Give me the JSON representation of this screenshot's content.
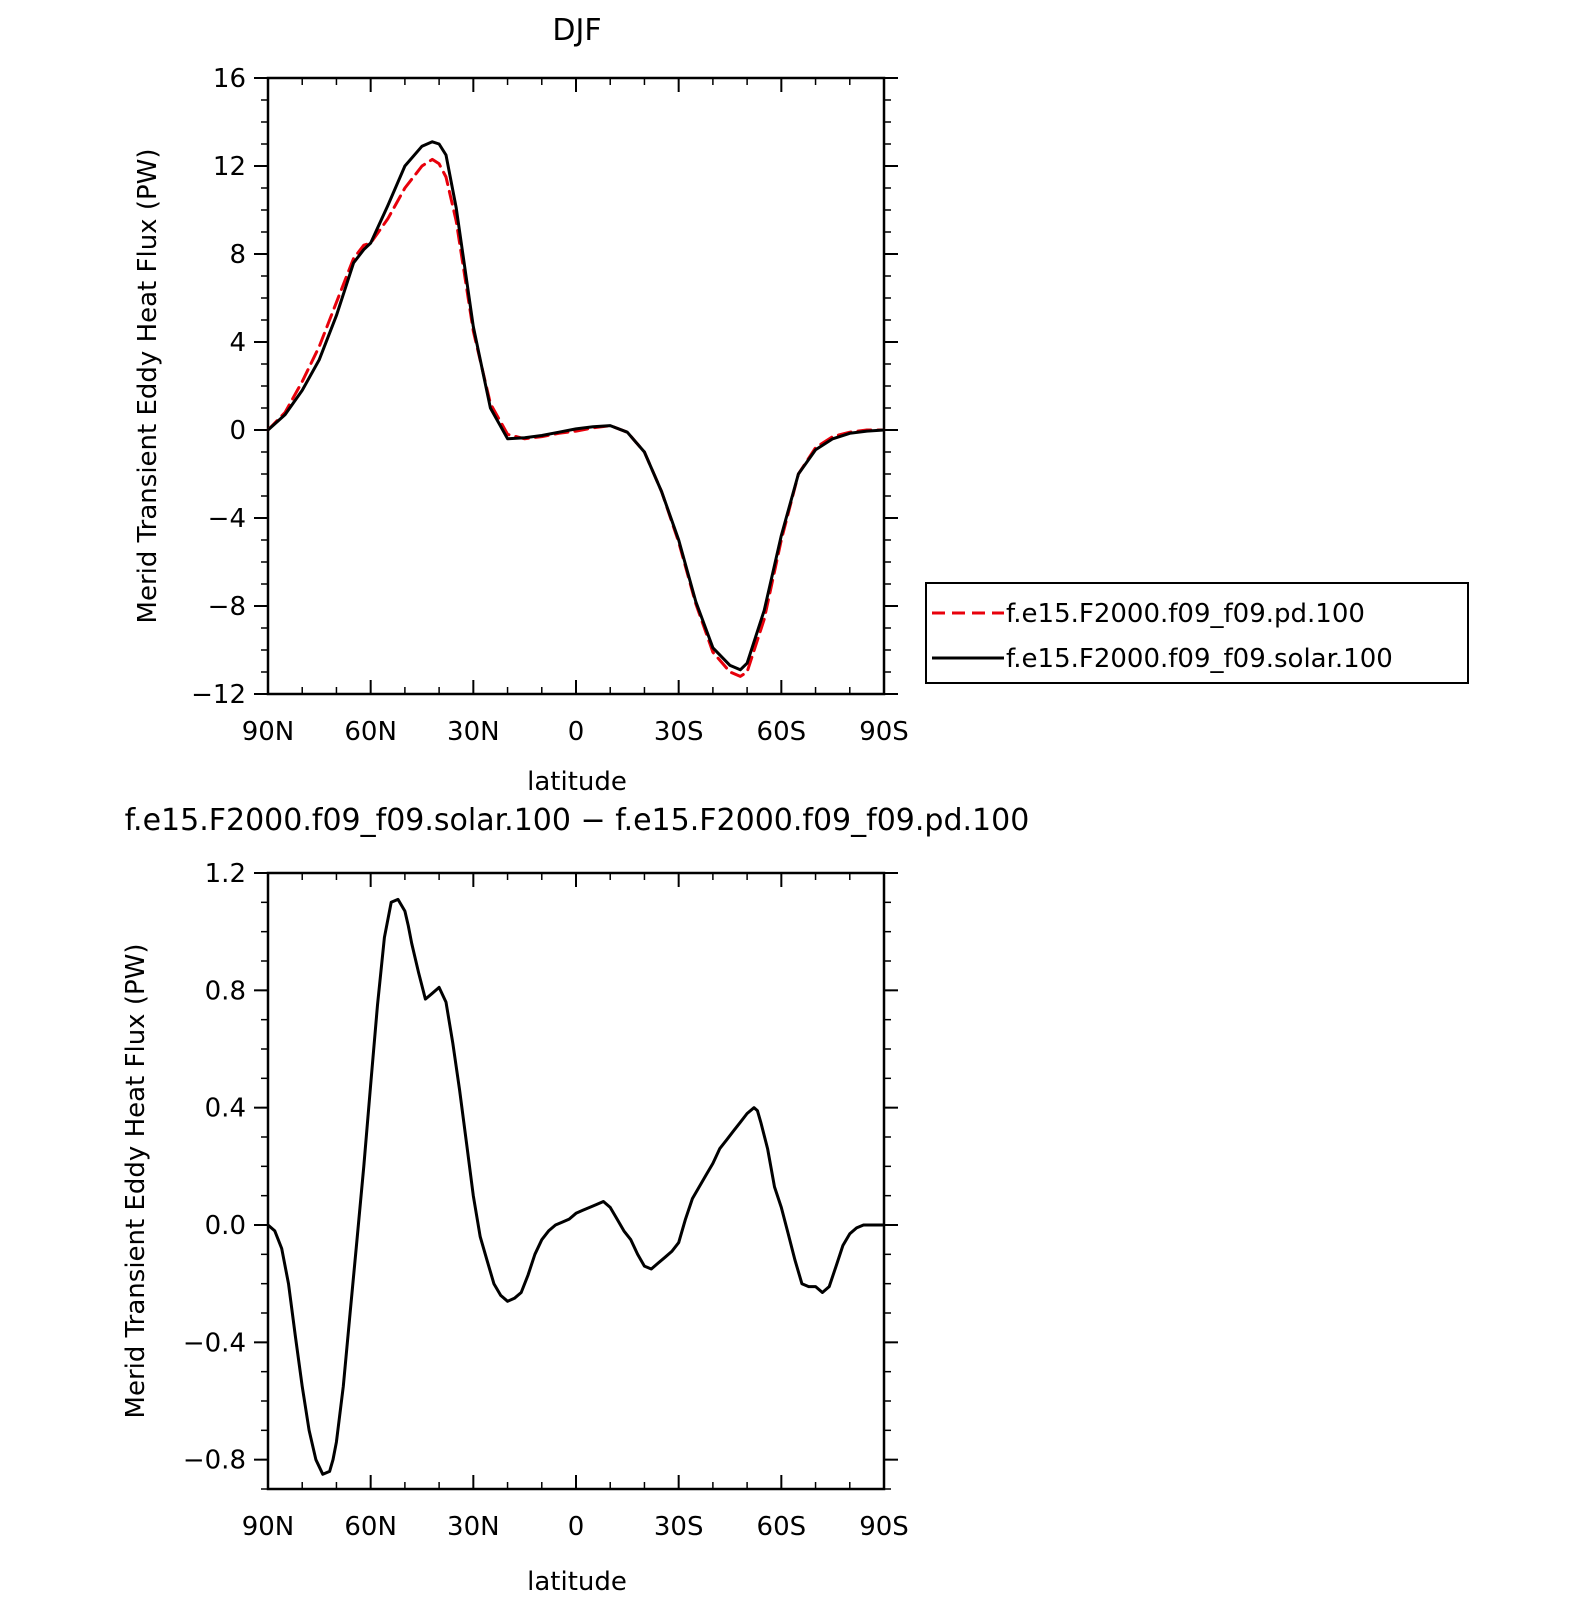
{
  "chart_data": [
    {
      "type": "line",
      "title": "DJF",
      "xlabel": "latitude",
      "ylabel": "Merid Transient Eddy Heat Flux (PW)",
      "x_tick_labels": [
        "90N",
        "60N",
        "30N",
        "0",
        "30S",
        "60S",
        "90S"
      ],
      "x_tick_values": [
        90,
        60,
        30,
        0,
        -30,
        -60,
        -90
      ],
      "xlim": [
        90,
        -90
      ],
      "ylim": [
        -12,
        16
      ],
      "y_tick_values": [
        -12,
        -8,
        -4,
        0,
        4,
        8,
        12,
        16
      ],
      "y_tick_labels": [
        "−12",
        "−8",
        "−4",
        "0",
        "4",
        "8",
        "12",
        "16"
      ],
      "grid": false,
      "legend_position": "right",
      "series": [
        {
          "name": "f.e15.F2000.f09_f09.pd.100",
          "color": "#e8000b",
          "dash": "dashed",
          "x": [
            90,
            85,
            80,
            75,
            70,
            65,
            62,
            60,
            55,
            50,
            45,
            42,
            40,
            38,
            35,
            30,
            25,
            20,
            15,
            10,
            5,
            0,
            -5,
            -10,
            -15,
            -20,
            -25,
            -30,
            -35,
            -40,
            -45,
            -48,
            -50,
            -55,
            -60,
            -65,
            -70,
            -75,
            -80,
            -85,
            -90
          ],
          "values": [
            0,
            0.8,
            2.2,
            3.8,
            5.8,
            7.8,
            8.4,
            8.5,
            9.6,
            11.0,
            12.0,
            12.3,
            12.1,
            11.5,
            9.5,
            4.5,
            1.2,
            -0.2,
            -0.4,
            -0.3,
            -0.15,
            -0.05,
            0.1,
            0.2,
            -0.1,
            -1.0,
            -2.8,
            -5.1,
            -7.9,
            -10.1,
            -11.0,
            -11.2,
            -11.0,
            -8.6,
            -5.0,
            -2.0,
            -0.8,
            -0.3,
            -0.1,
            0,
            0
          ]
        },
        {
          "name": "f.e15.F2000.f09_f09.solar.100",
          "color": "#000000",
          "dash": "solid",
          "x": [
            90,
            85,
            80,
            75,
            70,
            65,
            62,
            60,
            55,
            50,
            45,
            42,
            40,
            38,
            35,
            30,
            25,
            20,
            15,
            10,
            5,
            0,
            -5,
            -10,
            -15,
            -20,
            -25,
            -30,
            -35,
            -40,
            -45,
            -48,
            -50,
            -55,
            -60,
            -65,
            -70,
            -75,
            -80,
            -85,
            -90
          ],
          "values": [
            0,
            0.7,
            1.8,
            3.2,
            5.2,
            7.6,
            8.2,
            8.5,
            10.2,
            12.0,
            12.9,
            13.1,
            13.0,
            12.5,
            10.1,
            4.7,
            1.0,
            -0.4,
            -0.35,
            -0.25,
            -0.1,
            0.05,
            0.15,
            0.2,
            -0.1,
            -1.0,
            -2.8,
            -5.0,
            -7.8,
            -9.9,
            -10.7,
            -10.9,
            -10.6,
            -8.2,
            -4.8,
            -2.0,
            -0.9,
            -0.4,
            -0.15,
            -0.05,
            0
          ]
        }
      ]
    },
    {
      "type": "line",
      "title": "f.e15.F2000.f09_f09.solar.100 − f.e15.F2000.f09_f09.pd.100",
      "xlabel": "latitude",
      "ylabel": "Merid Transient Eddy Heat Flux (PW)",
      "x_tick_labels": [
        "90N",
        "60N",
        "30N",
        "0",
        "30S",
        "60S",
        "90S"
      ],
      "x_tick_values": [
        90,
        60,
        30,
        0,
        -30,
        -60,
        -90
      ],
      "xlim": [
        90,
        -90
      ],
      "ylim": [
        -0.9,
        1.2
      ],
      "y_tick_values": [
        -0.8,
        -0.4,
        0.0,
        0.4,
        0.8,
        1.2
      ],
      "y_tick_labels": [
        "−0.8",
        "−0.4",
        "0.0",
        "0.4",
        "0.8",
        "1.2"
      ],
      "grid": false,
      "series": [
        {
          "color": "#000000",
          "dash": "solid",
          "x": [
            90,
            88,
            86,
            84,
            82,
            80,
            78,
            76,
            74,
            72,
            71,
            70,
            68,
            66,
            64,
            62,
            60,
            58,
            56,
            54,
            52,
            50,
            49,
            48,
            46,
            44,
            42,
            40,
            38,
            36,
            34,
            32,
            30,
            28,
            26,
            24,
            22,
            20,
            18,
            16,
            14,
            12,
            10,
            8,
            6,
            4,
            2,
            0,
            -2,
            -4,
            -6,
            -8,
            -10,
            -12,
            -14,
            -16,
            -18,
            -20,
            -22,
            -24,
            -26,
            -28,
            -30,
            -32,
            -34,
            -36,
            -38,
            -40,
            -42,
            -44,
            -46,
            -48,
            -50,
            -52,
            -53,
            -54,
            -56,
            -58,
            -60,
            -62,
            -64,
            -66,
            -68,
            -70,
            -72,
            -74,
            -76,
            -78,
            -80,
            -82,
            -84,
            -86,
            -88,
            -90
          ],
          "values": [
            0,
            -0.02,
            -0.08,
            -0.2,
            -0.38,
            -0.55,
            -0.7,
            -0.8,
            -0.85,
            -0.84,
            -0.8,
            -0.74,
            -0.55,
            -0.3,
            -0.05,
            0.2,
            0.48,
            0.75,
            0.98,
            1.1,
            1.11,
            1.07,
            1.02,
            0.96,
            0.86,
            0.77,
            0.79,
            0.81,
            0.76,
            0.62,
            0.46,
            0.28,
            0.1,
            -0.04,
            -0.12,
            -0.2,
            -0.24,
            -0.26,
            -0.25,
            -0.23,
            -0.17,
            -0.1,
            -0.05,
            -0.02,
            0.0,
            0.01,
            0.02,
            0.04,
            0.05,
            0.06,
            0.07,
            0.08,
            0.06,
            0.02,
            -0.02,
            -0.05,
            -0.1,
            -0.14,
            -0.15,
            -0.13,
            -0.11,
            -0.09,
            -0.06,
            0.02,
            0.09,
            0.13,
            0.17,
            0.21,
            0.26,
            0.29,
            0.32,
            0.35,
            0.38,
            0.4,
            0.39,
            0.35,
            0.26,
            0.13,
            0.06,
            -0.03,
            -0.12,
            -0.2,
            -0.21,
            -0.21,
            -0.23,
            -0.21,
            -0.14,
            -0.07,
            -0.03,
            -0.01,
            0.0,
            0.0,
            0.0,
            0.0
          ]
        }
      ]
    }
  ]
}
